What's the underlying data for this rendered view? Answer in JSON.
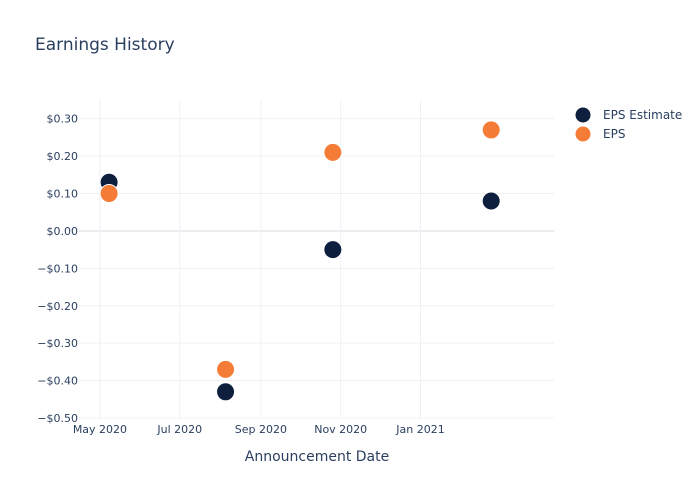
{
  "chart_data": {
    "type": "scatter",
    "title": "Earnings History",
    "xlabel": "Announcement Date",
    "ylabel": "",
    "x_tick_labels": [
      {
        "date": "2020-05-01",
        "label": "May 2020"
      },
      {
        "date": "2020-07-01",
        "label": "Jul 2020"
      },
      {
        "date": "2020-09-01",
        "label": "Sep 2020"
      },
      {
        "date": "2020-11-01",
        "label": "Nov 2020"
      },
      {
        "date": "2021-01-01",
        "label": "Jan 2021"
      }
    ],
    "xlim": [
      "2020-04-15",
      "2021-04-13"
    ],
    "ylim": [
      -0.5,
      0.35
    ],
    "y_ticks": [
      {
        "value": 0.3,
        "label": "$0.30"
      },
      {
        "value": 0.2,
        "label": "$0.20"
      },
      {
        "value": 0.1,
        "label": "$0.10"
      },
      {
        "value": 0.0,
        "label": "$0.00"
      },
      {
        "value": -0.1,
        "label": "−$0.10"
      },
      {
        "value": -0.2,
        "label": "−$0.20"
      },
      {
        "value": -0.3,
        "label": "−$0.30"
      },
      {
        "value": -0.4,
        "label": "−$0.40"
      },
      {
        "value": -0.5,
        "label": "−$0.50"
      }
    ],
    "grid": true,
    "legend_position": "top-right",
    "series": [
      {
        "name": "EPS Estimate",
        "color": "#0d1f3c",
        "points": [
          {
            "x": "2020-05-08",
            "y": 0.13
          },
          {
            "x": "2020-08-05",
            "y": -0.43
          },
          {
            "x": "2020-10-26",
            "y": -0.05
          },
          {
            "x": "2021-02-24",
            "y": 0.08
          }
        ]
      },
      {
        "name": "EPS",
        "color": "#f47c36",
        "points": [
          {
            "x": "2020-05-08",
            "y": 0.1
          },
          {
            "x": "2020-08-05",
            "y": -0.37
          },
          {
            "x": "2020-10-26",
            "y": 0.21
          },
          {
            "x": "2021-02-24",
            "y": 0.27
          }
        ]
      }
    ]
  }
}
